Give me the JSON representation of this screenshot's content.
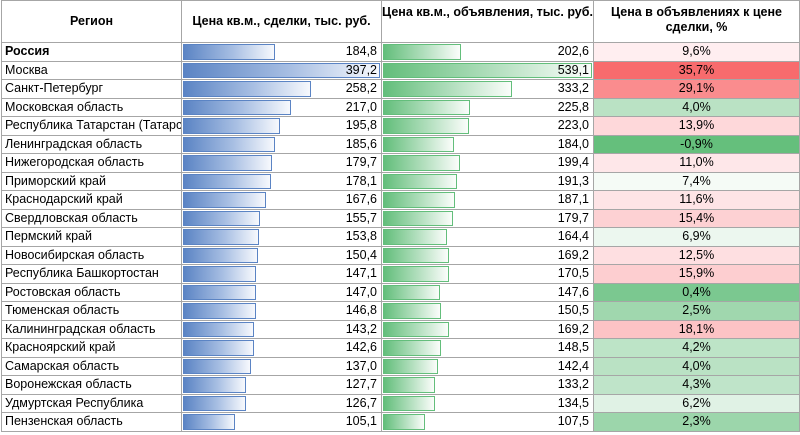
{
  "headers": {
    "region": "Регион",
    "deal_price": "Цена кв.м., сделки, тыс. руб.",
    "ad_price": "Цена кв.м., объявления, тыс. руб.",
    "pct": "Цена в объявлениях к цене сделки, %"
  },
  "bar_colors": {
    "deal": "#5b84c4",
    "ad": "#63be7b"
  },
  "scale": {
    "deal_max": 397.2,
    "ad_max": 539.1
  },
  "rows": [
    {
      "region": "Россия",
      "deal": "184,8",
      "deal_v": 184.8,
      "ad": "202,6",
      "ad_v": 202.6,
      "pct": "9,6%",
      "pct_v": 9.6,
      "bold": true
    },
    {
      "region": "Москва",
      "deal": "397,2",
      "deal_v": 397.2,
      "ad": "539,1",
      "ad_v": 539.1,
      "pct": "35,7%",
      "pct_v": 35.7
    },
    {
      "region": "Санкт-Петербург",
      "deal": "258,2",
      "deal_v": 258.2,
      "ad": "333,2",
      "ad_v": 333.2,
      "pct": "29,1%",
      "pct_v": 29.1
    },
    {
      "region": "Московская область",
      "deal": "217,0",
      "deal_v": 217.0,
      "ad": "225,8",
      "ad_v": 225.8,
      "pct": "4,0%",
      "pct_v": 4.0
    },
    {
      "region": "Республика Татарстан (Татарстан)",
      "deal": "195,8",
      "deal_v": 195.8,
      "ad": "223,0",
      "ad_v": 223.0,
      "pct": "13,9%",
      "pct_v": 13.9
    },
    {
      "region": "Ленинградская область",
      "deal": "185,6",
      "deal_v": 185.6,
      "ad": "184,0",
      "ad_v": 184.0,
      "pct": "-0,9%",
      "pct_v": -0.9
    },
    {
      "region": "Нижегородская область",
      "deal": "179,7",
      "deal_v": 179.7,
      "ad": "199,4",
      "ad_v": 199.4,
      "pct": "11,0%",
      "pct_v": 11.0
    },
    {
      "region": "Приморский край",
      "deal": "178,1",
      "deal_v": 178.1,
      "ad": "191,3",
      "ad_v": 191.3,
      "pct": "7,4%",
      "pct_v": 7.4
    },
    {
      "region": "Краснодарский край",
      "deal": "167,6",
      "deal_v": 167.6,
      "ad": "187,1",
      "ad_v": 187.1,
      "pct": "11,6%",
      "pct_v": 11.6
    },
    {
      "region": "Свердловская область",
      "deal": "155,7",
      "deal_v": 155.7,
      "ad": "179,7",
      "ad_v": 179.7,
      "pct": "15,4%",
      "pct_v": 15.4
    },
    {
      "region": "Пермский край",
      "deal": "153,8",
      "deal_v": 153.8,
      "ad": "164,4",
      "ad_v": 164.4,
      "pct": "6,9%",
      "pct_v": 6.9
    },
    {
      "region": "Новосибирская область",
      "deal": "150,4",
      "deal_v": 150.4,
      "ad": "169,2",
      "ad_v": 169.2,
      "pct": "12,5%",
      "pct_v": 12.5
    },
    {
      "region": "Республика Башкортостан",
      "deal": "147,1",
      "deal_v": 147.1,
      "ad": "170,5",
      "ad_v": 170.5,
      "pct": "15,9%",
      "pct_v": 15.9
    },
    {
      "region": "Ростовская область",
      "deal": "147,0",
      "deal_v": 147.0,
      "ad": "147,6",
      "ad_v": 147.6,
      "pct": "0,4%",
      "pct_v": 0.4
    },
    {
      "region": "Тюменская область",
      "deal": "146,8",
      "deal_v": 146.8,
      "ad": "150,5",
      "ad_v": 150.5,
      "pct": "2,5%",
      "pct_v": 2.5
    },
    {
      "region": "Калининградская область",
      "deal": "143,2",
      "deal_v": 143.2,
      "ad": "169,2",
      "ad_v": 169.2,
      "pct": "18,1%",
      "pct_v": 18.1
    },
    {
      "region": "Красноярский край",
      "deal": "142,6",
      "deal_v": 142.6,
      "ad": "148,5",
      "ad_v": 148.5,
      "pct": "4,2%",
      "pct_v": 4.2
    },
    {
      "region": "Самарская область",
      "deal": "137,0",
      "deal_v": 137.0,
      "ad": "142,4",
      "ad_v": 142.4,
      "pct": "4,0%",
      "pct_v": 4.0
    },
    {
      "region": "Воронежская область",
      "deal": "127,7",
      "deal_v": 127.7,
      "ad": "133,2",
      "ad_v": 133.2,
      "pct": "4,3%",
      "pct_v": 4.3
    },
    {
      "region": "Удмуртская Республика",
      "deal": "126,7",
      "deal_v": 126.7,
      "ad": "134,5",
      "ad_v": 134.5,
      "pct": "6,2%",
      "pct_v": 6.2
    },
    {
      "region": "Пензенская область",
      "deal": "105,1",
      "deal_v": 105.1,
      "ad": "107,5",
      "ad_v": 107.5,
      "pct": "2,3%",
      "pct_v": 2.3
    }
  ]
}
